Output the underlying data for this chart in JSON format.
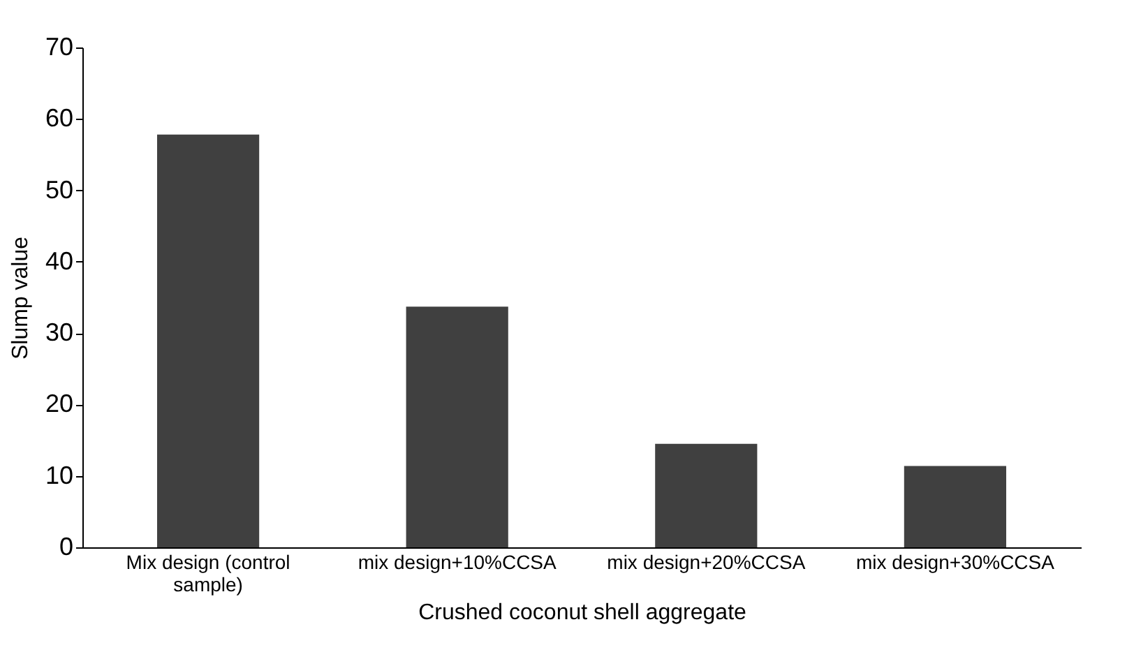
{
  "chart_data": {
    "type": "bar",
    "xlabel": "Crushed coconut shell aggregate",
    "ylabel": "Slump value",
    "categories": [
      "Mix design (control sample)",
      "mix design+10%CCSA",
      "mix design+20%CCSA",
      "mix design+30%CCSA"
    ],
    "values": [
      57.8,
      33.7,
      14.5,
      11.4
    ],
    "color": "#404040",
    "ylim": [
      0,
      70
    ],
    "yticks": [
      0,
      10,
      20,
      30,
      40,
      50,
      60,
      70
    ],
    "grid": false
  }
}
